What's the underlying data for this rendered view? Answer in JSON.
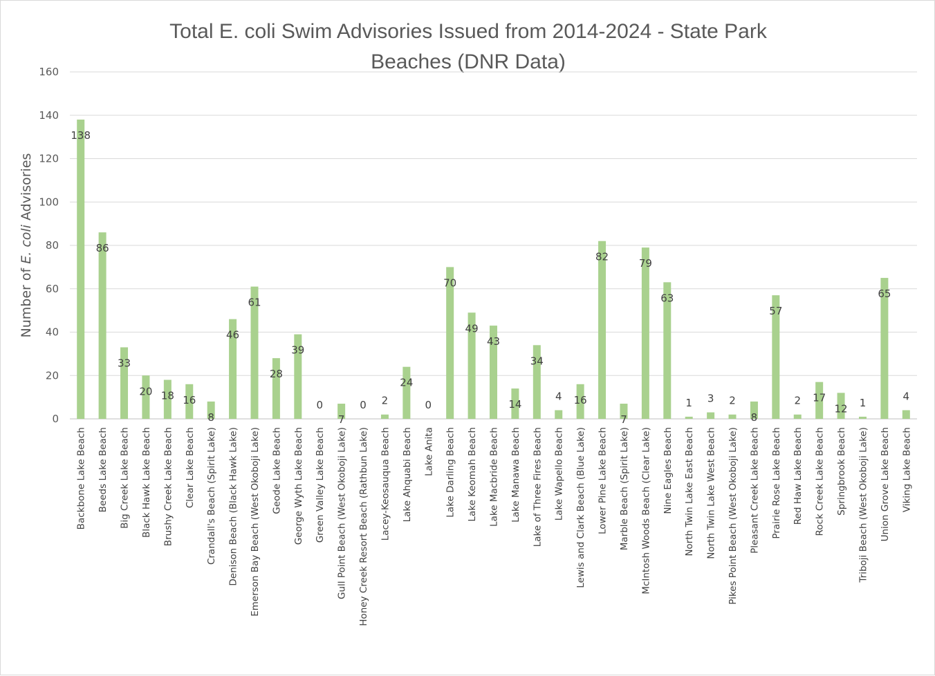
{
  "chart_data": {
    "type": "bar",
    "title_line1": "Total E. coli Swim Advisories Issued from 2014-2024 - State Park",
    "title_line2": "Beaches (DNR Data)",
    "ylabel_pre": "Number of ",
    "ylabel_italic": "E. coli",
    "ylabel_post": " Advisories",
    "xlabel": "",
    "ylim": [
      0,
      160
    ],
    "yticks": [
      0,
      20,
      40,
      60,
      80,
      100,
      120,
      140,
      160
    ],
    "grid": true,
    "legend": "none",
    "bar_color": "#a9d18e",
    "categories": [
      "Backbone Lake Beach",
      "Beeds Lake Beach",
      "Big Creek Lake Beach",
      "Black Hawk Lake Beach",
      "Brushy Creek Lake Beach",
      "Clear Lake Beach",
      "Crandall's Beach (Spirit Lake)",
      "Denison Beach (Black Hawk Lake)",
      "Emerson Bay Beach (West Okoboji Lake)",
      "Geode Lake Beach",
      "George Wyth Lake Beach",
      "Green Valley Lake Beach",
      "Gull Point Beach (West Okoboji Lake)",
      "Honey Creek Resort Beach (Rathbun Lake)",
      "Lacey-Keosauqua Beach",
      "Lake Ahquabi Beach",
      "Lake Anita",
      "Lake Darling Beach",
      "Lake Keomah Beach",
      "Lake Macbride Beach",
      "Lake Manawa Beach",
      "Lake of Three Fires Beach",
      "Lake Wapello Beach",
      "Lewis and Clark Beach (Blue Lake)",
      "Lower Pine Lake Beach",
      "Marble Beach (Spirit Lake)",
      "McIntosh Woods Beach (Clear Lake)",
      "Nine Eagles Beach",
      "North Twin Lake East Beach",
      "North Twin Lake West Beach",
      "Pikes Point Beach (West Okoboji Lake)",
      "Pleasant Creek Lake Beach",
      "Prairie Rose Lake Beach",
      "Red Haw Lake Beach",
      "Rock Creek Lake Beach",
      "Springbrook Beach",
      "Triboji Beach (West Okoboji Lake)",
      "Union Grove Lake Beach",
      "Viking Lake Beach"
    ],
    "values": [
      138,
      86,
      33,
      20,
      18,
      16,
      8,
      46,
      61,
      28,
      39,
      0,
      7,
      0,
      2,
      24,
      0,
      70,
      49,
      43,
      14,
      34,
      4,
      16,
      82,
      7,
      79,
      63,
      1,
      3,
      2,
      8,
      57,
      2,
      17,
      12,
      1,
      65,
      4
    ]
  }
}
